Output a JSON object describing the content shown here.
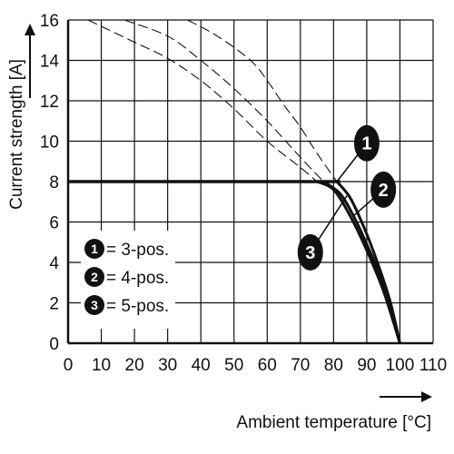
{
  "chart_data": {
    "type": "line",
    "title": "",
    "xlabel": "Ambient temperature [°C]",
    "ylabel": "Current strength [A]",
    "xlim": [
      0,
      110
    ],
    "ylim": [
      0,
      16
    ],
    "x_ticks": [
      "0",
      "10",
      "20",
      "30",
      "40",
      "50",
      "60",
      "70",
      "80",
      "90",
      "100",
      "110"
    ],
    "y_ticks": [
      "0",
      "2",
      "4",
      "6",
      "8",
      "10",
      "12",
      "14",
      "16"
    ],
    "grid": true,
    "legend_position": "bottom-left",
    "legend": [
      {
        "marker": "1",
        "label": "= 3-pos."
      },
      {
        "marker": "2",
        "label": "= 4-pos."
      },
      {
        "marker": "3",
        "label": "= 5-pos."
      }
    ],
    "derating_limit": {
      "points": [
        [
          0,
          8
        ],
        [
          82,
          8
        ]
      ]
    },
    "series": [
      {
        "marker": "1",
        "line": "solid",
        "points": [
          [
            75,
            8
          ],
          [
            80,
            7.6
          ],
          [
            85,
            6.3
          ],
          [
            90,
            4.6
          ],
          [
            95,
            2.6
          ],
          [
            100,
            0
          ]
        ]
      },
      {
        "marker": "2",
        "line": "solid",
        "points": [
          [
            77,
            8
          ],
          [
            82,
            7.4
          ],
          [
            86,
            6.3
          ],
          [
            90,
            4.9
          ],
          [
            95,
            2.9
          ],
          [
            100,
            0
          ]
        ]
      },
      {
        "marker": "3",
        "line": "solid",
        "points": [
          [
            81,
            8
          ],
          [
            85,
            7.2
          ],
          [
            89,
            5.8
          ],
          [
            93,
            4.1
          ],
          [
            97,
            2.1
          ],
          [
            100,
            0
          ]
        ]
      }
    ],
    "dashed_curves": [
      {
        "points": [
          [
            6,
            16
          ],
          [
            20,
            14.9
          ],
          [
            30,
            14.1
          ],
          [
            40,
            13
          ],
          [
            50,
            11.6
          ],
          [
            60,
            10
          ],
          [
            70,
            8.7
          ],
          [
            75,
            8
          ]
        ]
      },
      {
        "points": [
          [
            17,
            16
          ],
          [
            30,
            15.2
          ],
          [
            40,
            14
          ],
          [
            50,
            12.6
          ],
          [
            60,
            11
          ],
          [
            70,
            9.2
          ],
          [
            77,
            8
          ]
        ]
      },
      {
        "points": [
          [
            36,
            16
          ],
          [
            45,
            15.2
          ],
          [
            55,
            14
          ],
          [
            60,
            13
          ],
          [
            65,
            11.8
          ],
          [
            70,
            10.7
          ],
          [
            75,
            9.4
          ],
          [
            81,
            8
          ]
        ]
      }
    ],
    "markers": [
      {
        "label": "1",
        "x": 90,
        "y": 9.9,
        "target": [
          81,
          8
        ]
      },
      {
        "label": "2",
        "x": 95,
        "y": 7.6,
        "target": [
          86,
          6.3
        ]
      },
      {
        "label": "3",
        "x": 73,
        "y": 4.5,
        "target": [
          84,
          7.3
        ]
      }
    ]
  }
}
